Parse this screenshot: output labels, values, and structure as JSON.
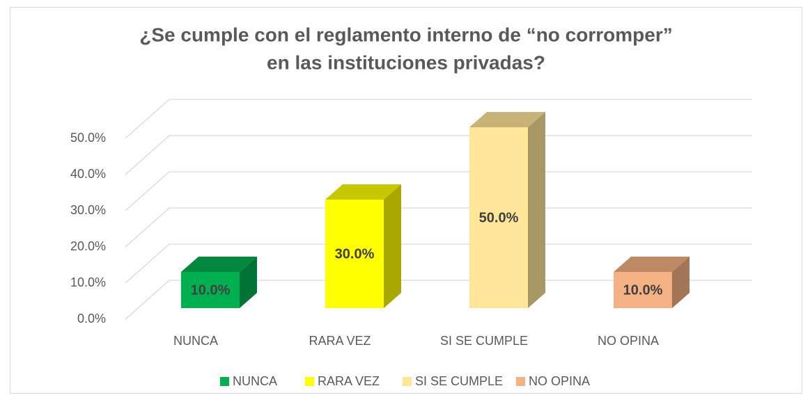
{
  "chart_data": {
    "type": "bar3d",
    "title": [
      "¿Se cumple con el reglamento interno de “no corromper”",
      "en las instituciones privadas?"
    ],
    "categories": [
      "NUNCA",
      "RARA VEZ",
      "SI SE CUMPLE",
      "NO OPINA"
    ],
    "values": [
      10,
      30,
      50,
      10
    ],
    "value_labels": [
      "10.0%",
      "30.0%",
      "50.0%",
      "10.0%"
    ],
    "colors": [
      "#00b050",
      "#ffff00",
      "#ffe699",
      "#f4b183"
    ],
    "ylim": [
      0,
      50
    ],
    "yticks": [
      {
        "value": 0,
        "label": "0.0%"
      },
      {
        "value": 10,
        "label": "10.0%"
      },
      {
        "value": 20,
        "label": "20.0%"
      },
      {
        "value": 30,
        "label": "30.0%"
      },
      {
        "value": 40,
        "label": "40.0%"
      },
      {
        "value": 50,
        "label": "50.0%"
      }
    ],
    "grid": true,
    "legend": "bottom"
  }
}
